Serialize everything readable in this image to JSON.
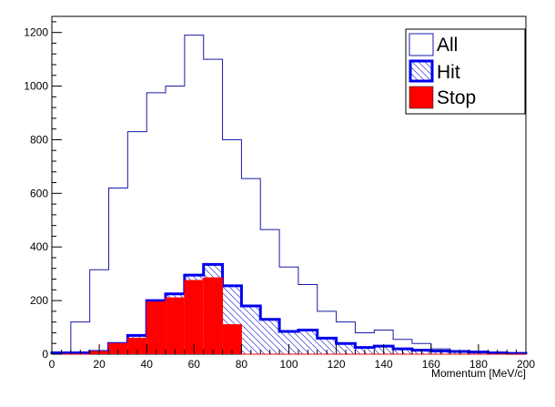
{
  "chart_data": {
    "type": "histogram",
    "xlabel": "Momentum [MeV/c]",
    "ylabel": "",
    "xlim": [
      0,
      200
    ],
    "ylim": [
      0,
      1260
    ],
    "x_ticks": [
      0,
      20,
      40,
      60,
      80,
      100,
      120,
      140,
      160,
      180,
      200
    ],
    "y_ticks": [
      0,
      200,
      400,
      600,
      800,
      1000,
      1200
    ],
    "bin_edges": [
      0,
      8,
      16,
      24,
      32,
      40,
      48,
      56,
      64,
      72,
      80,
      88,
      96,
      104,
      112,
      120,
      128,
      136,
      144,
      152,
      160,
      168,
      176,
      184,
      192,
      200
    ],
    "grid": false,
    "legend_position": "top-right",
    "series": [
      {
        "name": "All",
        "style": "outline",
        "color": "#1a1aa8",
        "values": [
          5,
          120,
          315,
          620,
          830,
          975,
          1000,
          1190,
          1100,
          800,
          655,
          465,
          325,
          260,
          160,
          120,
          80,
          90,
          55,
          40,
          20,
          12,
          10,
          5,
          3
        ]
      },
      {
        "name": "Hit",
        "style": "hatched",
        "color": "#0000ee",
        "values": [
          5,
          5,
          10,
          40,
          70,
          200,
          225,
          295,
          335,
          255,
          180,
          130,
          85,
          90,
          60,
          40,
          25,
          30,
          20,
          15,
          12,
          10,
          8,
          5,
          3
        ]
      },
      {
        "name": "Stop",
        "style": "filled",
        "color": "#ff0000",
        "values": [
          0,
          0,
          10,
          40,
          60,
          195,
          210,
          275,
          285,
          110,
          0,
          0,
          0,
          0,
          0,
          0,
          0,
          0,
          0,
          0,
          0,
          0,
          0,
          0,
          0
        ]
      }
    ]
  }
}
